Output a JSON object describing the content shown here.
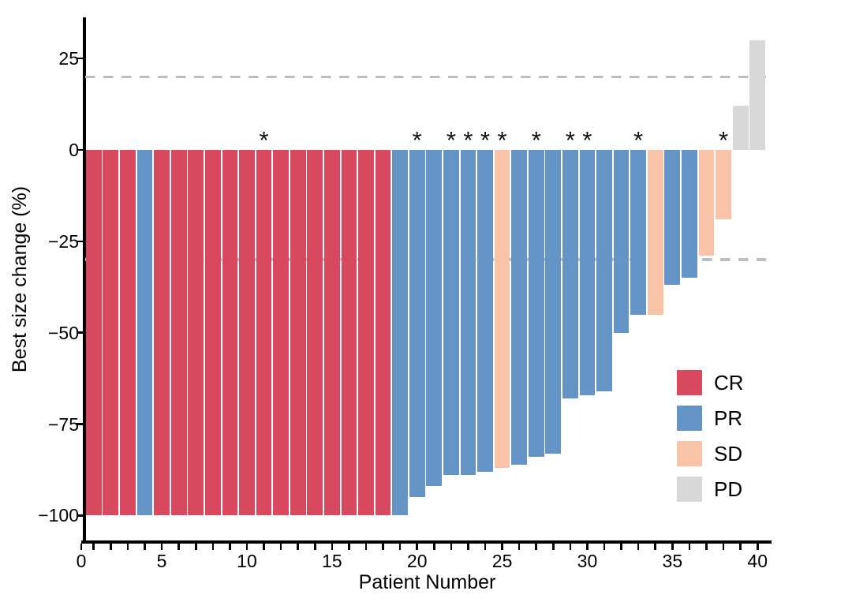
{
  "figure": {
    "title": "",
    "xlabel": "Patient Number",
    "ylabel": "Best size change (%)"
  },
  "chart_data": {
    "type": "bar",
    "title": "",
    "xlabel": "Patient Number",
    "ylabel": "Best size change (%)",
    "x": [
      1,
      2,
      3,
      4,
      5,
      6,
      7,
      8,
      9,
      10,
      11,
      12,
      13,
      14,
      15,
      16,
      17,
      18,
      19,
      20,
      21,
      22,
      23,
      24,
      25,
      26,
      27,
      28,
      29,
      30,
      31,
      32,
      33,
      34,
      35,
      36,
      37,
      38,
      39,
      40
    ],
    "values": [
      -100,
      -100,
      -100,
      -100,
      -100,
      -100,
      -100,
      -100,
      -100,
      -100,
      -100,
      -100,
      -100,
      -100,
      -100,
      -100,
      -100,
      -100,
      -100,
      -95,
      -92,
      -89,
      -89,
      -88,
      -87,
      -86,
      -84,
      -83,
      -68,
      -67,
      -66,
      -50,
      -45,
      -45,
      -37,
      -35,
      -29,
      -19,
      12,
      30
    ],
    "response": [
      "CR",
      "CR",
      "CR",
      "PR",
      "CR",
      "CR",
      "CR",
      "CR",
      "CR",
      "CR",
      "CR",
      "CR",
      "CR",
      "CR",
      "CR",
      "CR",
      "CR",
      "CR",
      "PR",
      "PR",
      "PR",
      "PR",
      "PR",
      "PR",
      "SD",
      "PR",
      "PR",
      "PR",
      "PR",
      "PR",
      "PR",
      "PR",
      "PR",
      "SD",
      "PR",
      "PR",
      "SD",
      "SD",
      "PD",
      "PD"
    ],
    "starred_patients": [
      11,
      20,
      22,
      23,
      24,
      25,
      27,
      29,
      30,
      33,
      38
    ],
    "annotation_symbol": "*",
    "x_ticks_labeled": [
      0,
      5,
      10,
      15,
      20,
      25,
      30,
      35,
      40
    ],
    "x_ticks_minor_every": 1,
    "y_ticks": [
      25,
      0,
      -25,
      -50,
      -75,
      -100
    ],
    "y_tick_labels": [
      "25",
      "0",
      "−25",
      "−50",
      "−75",
      "−100"
    ],
    "ylim": [
      -106.8,
      36.25
    ],
    "xlim": [
      0,
      40.3
    ],
    "grid": false,
    "reference_lines": [
      {
        "y": 20,
        "style": "dashed",
        "color": "#bdbdbd"
      },
      {
        "y": -30,
        "style": "dashed",
        "color": "#bdbdbd"
      }
    ],
    "colors": {
      "CR": "#d8485f",
      "PR": "#6495c6",
      "SD": "#f8c3a6",
      "PD": "#d8d8d8",
      "axis": "#000000",
      "reference": "#bdbdbd",
      "background": "#ffffff"
    },
    "legend": {
      "position": "inside-right",
      "entries": [
        {
          "label": "CR",
          "color": "#d8485f"
        },
        {
          "label": "PR",
          "color": "#6495c6"
        },
        {
          "label": "SD",
          "color": "#f8c3a6"
        },
        {
          "label": "PD",
          "color": "#d8d8d8"
        }
      ]
    }
  }
}
